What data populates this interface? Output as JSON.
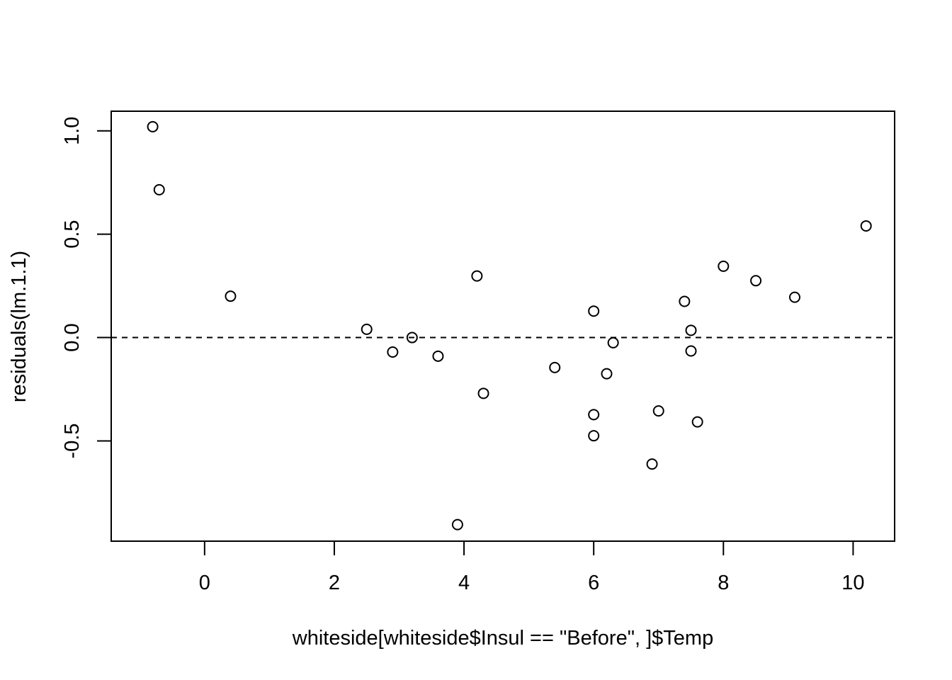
{
  "chart_data": {
    "type": "scatter",
    "title": "",
    "xlabel": "whiteside[whiteside$Insul == \"Before\", ]$Temp",
    "ylabel": "residuals(lm.1.1)",
    "xlim": [
      -1.44,
      10.64
    ],
    "ylim": [
      -0.985,
      1.095
    ],
    "x_ticks": [
      0,
      2,
      4,
      6,
      8,
      10
    ],
    "x_tick_labels": [
      "0",
      "2",
      "4",
      "6",
      "8",
      "10"
    ],
    "y_ticks": [
      -0.5,
      0.0,
      0.5,
      1.0
    ],
    "y_tick_labels": [
      "-0.5",
      "0.0",
      "0.5",
      "1.0"
    ],
    "grid": false,
    "reference_line": {
      "y": 0,
      "style": "dashed"
    },
    "marker": "open-circle",
    "points": [
      {
        "x": -0.8,
        "y": 1.02
      },
      {
        "x": -0.7,
        "y": 0.715
      },
      {
        "x": 0.4,
        "y": 0.2
      },
      {
        "x": 2.5,
        "y": 0.04
      },
      {
        "x": 2.9,
        "y": -0.07
      },
      {
        "x": 3.2,
        "y": 0.0
      },
      {
        "x": 3.6,
        "y": -0.09
      },
      {
        "x": 3.9,
        "y": -0.905
      },
      {
        "x": 4.2,
        "y": 0.298
      },
      {
        "x": 4.3,
        "y": -0.27
      },
      {
        "x": 5.4,
        "y": -0.145
      },
      {
        "x": 6.0,
        "y": 0.128
      },
      {
        "x": 6.0,
        "y": -0.373
      },
      {
        "x": 6.0,
        "y": -0.475
      },
      {
        "x": 6.2,
        "y": -0.175
      },
      {
        "x": 6.3,
        "y": -0.025
      },
      {
        "x": 6.9,
        "y": -0.612
      },
      {
        "x": 7.0,
        "y": -0.355
      },
      {
        "x": 7.4,
        "y": 0.175
      },
      {
        "x": 7.5,
        "y": 0.035
      },
      {
        "x": 7.5,
        "y": -0.065
      },
      {
        "x": 7.6,
        "y": -0.408
      },
      {
        "x": 8.0,
        "y": 0.345
      },
      {
        "x": 8.5,
        "y": 0.275
      },
      {
        "x": 9.1,
        "y": 0.195
      },
      {
        "x": 10.2,
        "y": 0.54
      }
    ]
  }
}
